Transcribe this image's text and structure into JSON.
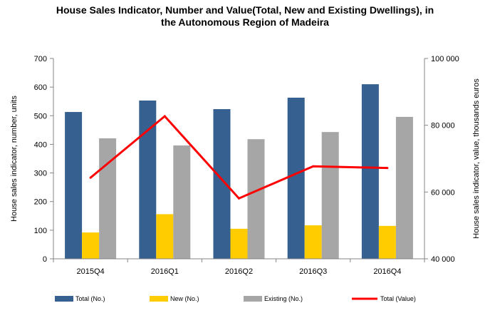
{
  "chart_data": {
    "type": "bar",
    "title_line1": "House Sales Indicator, Number and Value(Total, New and Existing Dwellings), in",
    "title_line2": "the Autonomous Region of Madeira",
    "categories": [
      "2015Q4",
      "2016Q1",
      "2016Q2",
      "2016Q3",
      "2016Q4"
    ],
    "series": [
      {
        "name": "Total (No.)",
        "axis": "left",
        "kind": "bar",
        "color": "#35608f",
        "values": [
          513,
          553,
          523,
          563,
          610
        ]
      },
      {
        "name": "New (No.)",
        "axis": "left",
        "kind": "bar",
        "color": "#ffcc00",
        "values": [
          92,
          156,
          105,
          117,
          115
        ]
      },
      {
        "name": "Existing (No.)",
        "axis": "left",
        "kind": "bar",
        "color": "#a6a6a6",
        "values": [
          421,
          396,
          418,
          443,
          496
        ]
      },
      {
        "name": "Total (Value)",
        "axis": "right",
        "kind": "line",
        "color": "#ff0000",
        "values": [
          64300,
          82700,
          58100,
          67700,
          67200
        ]
      }
    ],
    "ylabel_left": "House sales indicator, number, units",
    "ylabel_right": "House sales indicator, value, thousands euros",
    "ylim_left": [
      0,
      700
    ],
    "yticks_left": [
      0,
      100,
      200,
      300,
      400,
      500,
      600,
      700
    ],
    "ytick_labels_left": [
      "0",
      "100",
      "200",
      "300",
      "400",
      "500",
      "600",
      "700"
    ],
    "ylim_right": [
      40000,
      100000
    ],
    "yticks_right": [
      40000,
      60000,
      80000,
      100000
    ],
    "ytick_labels_right": [
      "40 000",
      "60 000",
      "80 000",
      "100 000"
    ],
    "legend_position": "bottom",
    "grid": false
  }
}
